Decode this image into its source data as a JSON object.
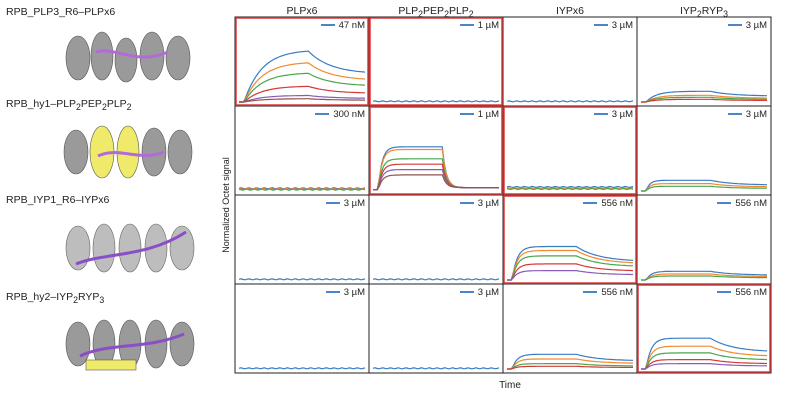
{
  "structures": [
    {
      "label": "RPB_PLP3_R6–PLPx6",
      "colors": {
        "helix": "#9a9a9a",
        "peptide": "#b36ad9"
      }
    },
    {
      "label": "RPB_hy1–PLP2PEP2PLP2",
      "colors": {
        "helix": "#9a9a9a",
        "highlight": "#f0ea6a",
        "peptide": "#b36ad9"
      }
    },
    {
      "label": "RPB_IYP1_R6–IYPx6",
      "colors": {
        "helix": "#bdbdbd",
        "peptide": "#8a4fc7"
      }
    },
    {
      "label": "RPB_hy2–IYP2RYP3",
      "colors": {
        "helix": "#9a9a9a",
        "highlight": "#f0ea6a",
        "peptide": "#8a4fc7"
      }
    }
  ],
  "axes": {
    "ylabel": "Normalized Octet signal",
    "xlabel": "Time"
  },
  "colors": {
    "highlight_border": "#e03a3a",
    "legend_line": "#4a86c5",
    "series": [
      "#3a7cc2",
      "#f28a2e",
      "#4aa64a",
      "#d43a3a",
      "#8a5cb8",
      "#8c564b"
    ]
  },
  "chart_data": {
    "type": "line",
    "columns": [
      "PLPx6",
      "PLP2PEP2PLP2",
      "IYPx6",
      "IYP2RYP3"
    ],
    "rows": [
      "RPB_PLP3_R6",
      "RPB_hy1",
      "RPB_IYP1_R6",
      "RPB_hy2"
    ],
    "cells": [
      {
        "row": 0,
        "col": 0,
        "conc": "47 nM",
        "highlight": true,
        "kind": "bind",
        "plateaus": [
          0.78,
          0.6,
          0.44,
          0.24,
          0.1,
          0.05
        ],
        "speed": 0.14
      },
      {
        "row": 0,
        "col": 1,
        "conc": "1 µM",
        "highlight": true,
        "kind": "flat",
        "plateaus": [
          0.01
        ]
      },
      {
        "row": 0,
        "col": 2,
        "conc": "3 µM",
        "highlight": false,
        "kind": "flat",
        "plateaus": [
          0.01
        ]
      },
      {
        "row": 0,
        "col": 3,
        "conc": "3 µM",
        "highlight": false,
        "kind": "bind",
        "plateaus": [
          0.16,
          0.1,
          0.07,
          0.04
        ],
        "speed": 0.08
      },
      {
        "row": 1,
        "col": 0,
        "conc": "300 nM",
        "highlight": false,
        "kind": "flat",
        "plateaus": [
          0.04,
          0.03,
          0.02
        ]
      },
      {
        "row": 1,
        "col": 1,
        "conc": "1 µM",
        "highlight": true,
        "kind": "square",
        "plateaus": [
          0.66,
          0.62,
          0.48,
          0.4,
          0.32,
          0.24
        ],
        "speed": 0.03
      },
      {
        "row": 1,
        "col": 2,
        "conc": "3 µM",
        "highlight": true,
        "kind": "flat",
        "plateaus": [
          0.06,
          0.04,
          0.03
        ]
      },
      {
        "row": 1,
        "col": 3,
        "conc": "3 µM",
        "highlight": false,
        "kind": "bind",
        "plateaus": [
          0.16,
          0.11,
          0.07
        ],
        "speed": 0.03
      },
      {
        "row": 2,
        "col": 0,
        "conc": "3 µM",
        "highlight": false,
        "kind": "flat",
        "plateaus": [
          0.01
        ]
      },
      {
        "row": 2,
        "col": 1,
        "conc": "3 µM",
        "highlight": false,
        "kind": "flat",
        "plateaus": [
          0.01
        ]
      },
      {
        "row": 2,
        "col": 2,
        "conc": "556 nM",
        "highlight": true,
        "kind": "bind",
        "plateaus": [
          0.5,
          0.44,
          0.36,
          0.24,
          0.14
        ],
        "speed": 0.04
      },
      {
        "row": 2,
        "col": 3,
        "conc": "556 nM",
        "highlight": false,
        "kind": "bind",
        "plateaus": [
          0.13,
          0.09,
          0.06
        ],
        "speed": 0.04
      },
      {
        "row": 3,
        "col": 0,
        "conc": "3 µM",
        "highlight": false,
        "kind": "flat",
        "plateaus": [
          0.01
        ]
      },
      {
        "row": 3,
        "col": 1,
        "conc": "3 µM",
        "highlight": false,
        "kind": "flat",
        "plateaus": [
          0.01
        ]
      },
      {
        "row": 3,
        "col": 2,
        "conc": "556 nM",
        "highlight": false,
        "kind": "bind",
        "plateaus": [
          0.22,
          0.15,
          0.08,
          0.04
        ],
        "speed": 0.04
      },
      {
        "row": 3,
        "col": 3,
        "conc": "556 nM",
        "highlight": true,
        "kind": "bind",
        "plateaus": [
          0.46,
          0.34,
          0.24,
          0.14,
          0.08
        ],
        "speed": 0.04
      }
    ]
  }
}
